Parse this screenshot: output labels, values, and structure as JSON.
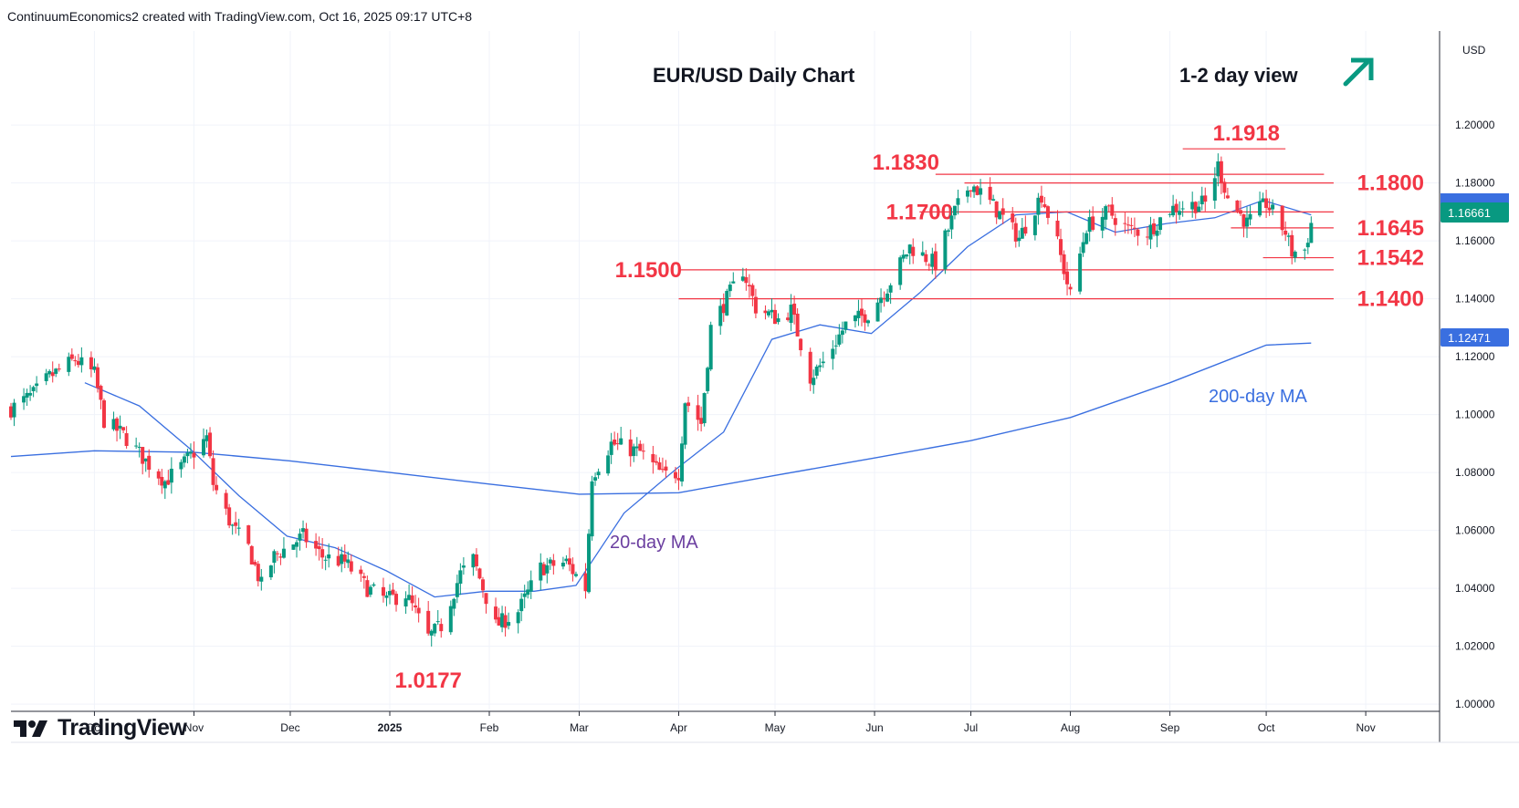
{
  "header": {
    "attribution": "ContinuumEconomics2 created with TradingView.com, Oct 16, 2025 09:17 UTC+8"
  },
  "branding": {
    "name": "TradingView",
    "icon": "tradingview-logo-icon"
  },
  "chart_data": {
    "type": "candlestick",
    "title": "EUR/USD Daily Chart",
    "view_label": "1-2 day view",
    "view_icon": "arrow-up-right-icon",
    "currency": "USD",
    "ylim": [
      0.9975,
      1.2325
    ],
    "y_ticks": [
      1.0,
      1.02,
      1.04,
      1.06,
      1.08,
      1.1,
      1.12,
      1.14,
      1.16,
      1.18,
      1.2
    ],
    "y_tick_labels": [
      "1.00000",
      "1.02000",
      "1.04000",
      "1.06000",
      "1.08000",
      "1.10000",
      "1.12000",
      "1.14000",
      "1.16000",
      "1.18000",
      "1.20000"
    ],
    "x_ticks": [
      {
        "label": "Oct",
        "date": "2024-10-01"
      },
      {
        "label": "Nov",
        "date": "2024-11-01"
      },
      {
        "label": "Dec",
        "date": "2024-12-01"
      },
      {
        "label": "2025",
        "date": "2025-01-01",
        "bold": true
      },
      {
        "label": "Feb",
        "date": "2025-02-01"
      },
      {
        "label": "Mar",
        "date": "2025-03-01"
      },
      {
        "label": "Apr",
        "date": "2025-04-01"
      },
      {
        "label": "May",
        "date": "2025-05-01"
      },
      {
        "label": "Jun",
        "date": "2025-06-01"
      },
      {
        "label": "Jul",
        "date": "2025-07-01"
      },
      {
        "label": "Aug",
        "date": "2025-08-01"
      },
      {
        "label": "Sep",
        "date": "2025-09-01"
      },
      {
        "label": "Oct",
        "date": "2025-10-01"
      },
      {
        "label": "Nov",
        "date": "2025-11-01"
      }
    ],
    "x_range": [
      "2024-09-05",
      "2025-11-24"
    ],
    "price_anchors": [
      [
        "2024-09-05",
        1.102
      ],
      [
        "2024-09-12",
        1.107
      ],
      [
        "2024-09-17",
        1.113
      ],
      [
        "2024-09-25",
        1.119
      ],
      [
        "2024-10-01",
        1.114
      ],
      [
        "2024-10-04",
        1.098
      ],
      [
        "2024-10-10",
        1.093
      ],
      [
        "2024-10-17",
        1.084
      ],
      [
        "2024-10-23",
        1.077
      ],
      [
        "2024-10-28",
        1.082
      ],
      [
        "2024-11-05",
        1.092
      ],
      [
        "2024-11-07",
        1.076
      ],
      [
        "2024-11-13",
        1.061
      ],
      [
        "2024-11-18",
        1.054
      ],
      [
        "2024-11-22",
        1.041
      ],
      [
        "2024-11-26",
        1.051
      ],
      [
        "2024-12-05",
        1.058
      ],
      [
        "2024-12-11",
        1.051
      ],
      [
        "2024-12-18",
        1.049
      ],
      [
        "2024-12-25",
        1.04
      ],
      [
        "2024-12-31",
        1.036
      ],
      [
        "2025-01-06",
        1.038
      ],
      [
        "2025-01-13",
        1.023
      ],
      [
        "2025-01-17",
        1.027
      ],
      [
        "2025-01-23",
        1.045
      ],
      [
        "2025-01-27",
        1.05
      ],
      [
        "2025-02-03",
        1.027
      ],
      [
        "2025-02-10",
        1.032
      ],
      [
        "2025-02-17",
        1.047
      ],
      [
        "2025-02-25",
        1.049
      ],
      [
        "2025-03-03",
        1.04
      ],
      [
        "2025-03-05",
        1.079
      ],
      [
        "2025-03-11",
        1.09
      ],
      [
        "2025-03-20",
        1.087
      ],
      [
        "2025-03-27",
        1.079
      ],
      [
        "2025-04-01",
        1.08
      ],
      [
        "2025-04-03",
        1.105
      ],
      [
        "2025-04-08",
        1.097
      ],
      [
        "2025-04-11",
        1.13
      ],
      [
        "2025-04-21",
        1.15
      ],
      [
        "2025-04-25",
        1.137
      ],
      [
        "2025-05-02",
        1.133
      ],
      [
        "2025-05-06",
        1.136
      ],
      [
        "2025-05-12",
        1.113
      ],
      [
        "2025-05-16",
        1.118
      ],
      [
        "2025-05-23",
        1.131
      ],
      [
        "2025-05-30",
        1.135
      ],
      [
        "2025-06-05",
        1.144
      ],
      [
        "2025-06-12",
        1.158
      ],
      [
        "2025-06-20",
        1.152
      ],
      [
        "2025-06-26",
        1.17
      ],
      [
        "2025-07-01",
        1.18
      ],
      [
        "2025-07-08",
        1.172
      ],
      [
        "2025-07-16",
        1.161
      ],
      [
        "2025-07-23",
        1.176
      ],
      [
        "2025-07-28",
        1.159
      ],
      [
        "2025-08-01",
        1.141
      ],
      [
        "2025-08-06",
        1.165
      ],
      [
        "2025-08-13",
        1.17
      ],
      [
        "2025-08-19",
        1.164
      ],
      [
        "2025-08-25",
        1.163
      ],
      [
        "2025-09-01",
        1.171
      ],
      [
        "2025-09-05",
        1.172
      ],
      [
        "2025-09-12",
        1.173
      ],
      [
        "2025-09-16",
        1.186
      ],
      [
        "2025-09-19",
        1.175
      ],
      [
        "2025-09-25",
        1.166
      ],
      [
        "2025-10-01",
        1.173
      ],
      [
        "2025-10-07",
        1.163
      ],
      [
        "2025-10-09",
        1.156
      ],
      [
        "2025-10-13",
        1.157
      ],
      [
        "2025-10-15",
        1.166
      ]
    ],
    "ma20": {
      "label": "20-day MA",
      "points": [
        [
          "2024-09-28",
          1.111
        ],
        [
          "2024-10-15",
          1.103
        ],
        [
          "2024-10-31",
          1.088
        ],
        [
          "2024-11-15",
          1.072
        ],
        [
          "2024-11-30",
          1.058
        ],
        [
          "2024-12-15",
          1.054
        ],
        [
          "2024-12-31",
          1.046
        ],
        [
          "2025-01-15",
          1.037
        ],
        [
          "2025-01-31",
          1.039
        ],
        [
          "2025-02-15",
          1.039
        ],
        [
          "2025-02-28",
          1.041
        ],
        [
          "2025-03-15",
          1.066
        ],
        [
          "2025-03-31",
          1.081
        ],
        [
          "2025-04-15",
          1.094
        ],
        [
          "2025-04-30",
          1.126
        ],
        [
          "2025-05-15",
          1.131
        ],
        [
          "2025-05-31",
          1.128
        ],
        [
          "2025-06-15",
          1.142
        ],
        [
          "2025-06-30",
          1.158
        ],
        [
          "2025-07-15",
          1.169
        ],
        [
          "2025-07-31",
          1.17
        ],
        [
          "2025-08-15",
          1.163
        ],
        [
          "2025-08-31",
          1.166
        ],
        [
          "2025-09-15",
          1.168
        ],
        [
          "2025-09-30",
          1.174
        ],
        [
          "2025-10-15",
          1.169
        ]
      ]
    },
    "ma200": {
      "label": "200-day MA",
      "points": [
        [
          "2024-09-05",
          1.0855
        ],
        [
          "2024-10-01",
          1.0875
        ],
        [
          "2024-11-01",
          1.087
        ],
        [
          "2024-12-01",
          1.084
        ],
        [
          "2025-01-01",
          1.08
        ],
        [
          "2025-02-01",
          1.076
        ],
        [
          "2025-03-01",
          1.0725
        ],
        [
          "2025-04-01",
          1.073
        ],
        [
          "2025-05-01",
          1.079
        ],
        [
          "2025-06-01",
          1.085
        ],
        [
          "2025-07-01",
          1.091
        ],
        [
          "2025-08-01",
          1.099
        ],
        [
          "2025-09-01",
          1.111
        ],
        [
          "2025-10-01",
          1.124
        ],
        [
          "2025-10-15",
          1.1247
        ]
      ]
    },
    "levels": [
      {
        "value": 1.1918,
        "label": "1.1918",
        "x_start": "2025-09-05",
        "x_end": "2025-10-07"
      },
      {
        "value": 1.183,
        "label": "1.1830",
        "x_start": "2025-06-20",
        "x_end": "2025-10-19"
      },
      {
        "value": 1.18,
        "label": "1.1800",
        "x_start": "2025-06-29",
        "x_end": "2025-10-22"
      },
      {
        "value": 1.17,
        "label": "1.1700",
        "x_start": "2025-06-15",
        "x_end": "2025-10-22"
      },
      {
        "value": 1.1645,
        "label": "1.1645",
        "x_start": "2025-09-20",
        "x_end": "2025-10-22"
      },
      {
        "value": 1.1542,
        "label": "1.1542",
        "x_start": "2025-09-30",
        "x_end": "2025-10-22"
      },
      {
        "value": 1.15,
        "label": "1.1500",
        "x_start": "2025-04-01",
        "x_end": "2025-10-22"
      },
      {
        "value": 1.14,
        "label": "1.1400",
        "x_start": "2025-04-01",
        "x_end": "2025-10-22"
      },
      {
        "value": 1.0177,
        "label": "1.0177",
        "x_start": "2025-01-13",
        "x_end": "2025-01-13"
      }
    ],
    "last_price": "1.16661",
    "ma200_last": "1.12471",
    "colors": {
      "up": "#089981",
      "down": "#f23645",
      "ma": "#3a6fe0",
      "level": "#f23645",
      "ma20_label": "#6b3fa0"
    }
  }
}
